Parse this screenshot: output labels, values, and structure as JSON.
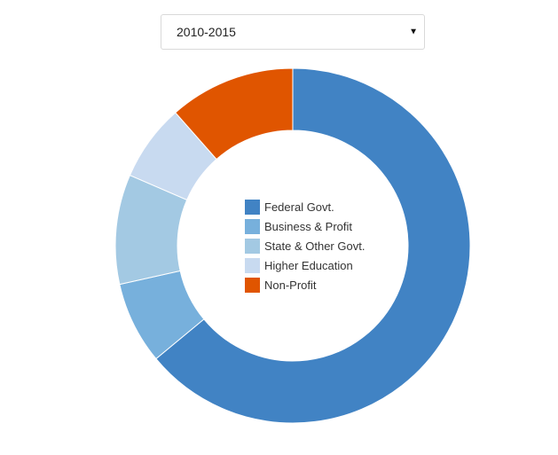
{
  "selector": {
    "selected": "2010-2015",
    "caret_icon": "caret-down-icon"
  },
  "chart_data": {
    "type": "pie",
    "donut": true,
    "title": "",
    "categories": [
      "Federal Govt.",
      "Business & Profit",
      "State & Other Govt.",
      "Higher Education",
      "Non-Profit"
    ],
    "values": [
      64,
      7.5,
      10,
      7,
      11.5
    ],
    "unit": "percent (estimated share)",
    "colors": [
      "#4183c4",
      "#77b0dc",
      "#a3c9e3",
      "#c8daf0",
      "#e05500"
    ],
    "legend_position": "center"
  }
}
